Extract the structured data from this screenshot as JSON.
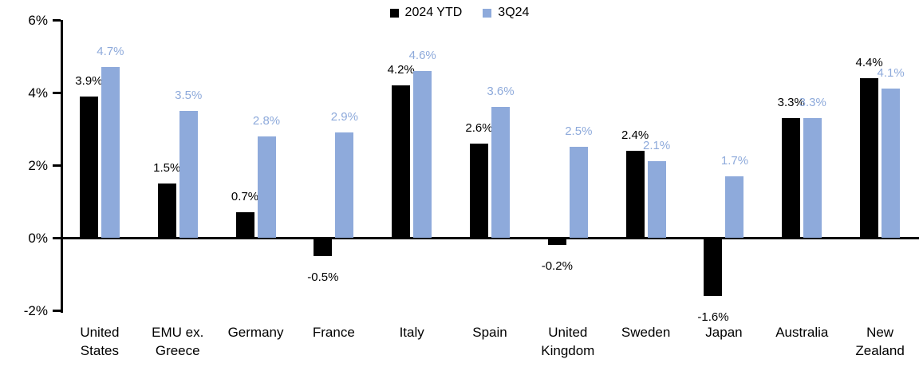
{
  "chart_data": {
    "type": "bar",
    "title": "",
    "xlabel": "",
    "ylabel": "",
    "categories": [
      "United States",
      "EMU ex. Greece",
      "Germany",
      "France",
      "Italy",
      "Spain",
      "United Kingdom",
      "Sweden",
      "Japan",
      "Australia",
      "New Zealand"
    ],
    "series": [
      {
        "name": "2024 YTD",
        "color": "#000000",
        "values": [
          3.9,
          1.5,
          0.7,
          -0.5,
          4.2,
          2.6,
          -0.2,
          2.4,
          -1.6,
          3.3,
          4.4
        ],
        "labels": [
          "3.9%",
          "1.5%",
          "0.7%",
          "-0.5%",
          "4.2%",
          "2.6%",
          "-0.2%",
          "2.4%",
          "-1.6%",
          "3.3%",
          "4.4%"
        ]
      },
      {
        "name": "3Q24",
        "color": "#8EAADB",
        "values": [
          4.7,
          3.5,
          2.8,
          2.9,
          4.6,
          3.6,
          2.5,
          2.1,
          1.7,
          3.3,
          4.1
        ],
        "labels": [
          "4.7%",
          "3.5%",
          "2.8%",
          "2.9%",
          "4.6%",
          "3.6%",
          "2.5%",
          "2.1%",
          "1.7%",
          "3.3%",
          "4.1%"
        ]
      }
    ],
    "ylim": [
      -2,
      6
    ],
    "yticks": [
      "6%",
      "4%",
      "2%",
      "0%",
      "-2%"
    ],
    "ytick_values": [
      6,
      4,
      2,
      0,
      -2
    ],
    "grid": false,
    "legend_position": "top-center",
    "axis_color": "#000000",
    "background_color": "#ffffff"
  }
}
